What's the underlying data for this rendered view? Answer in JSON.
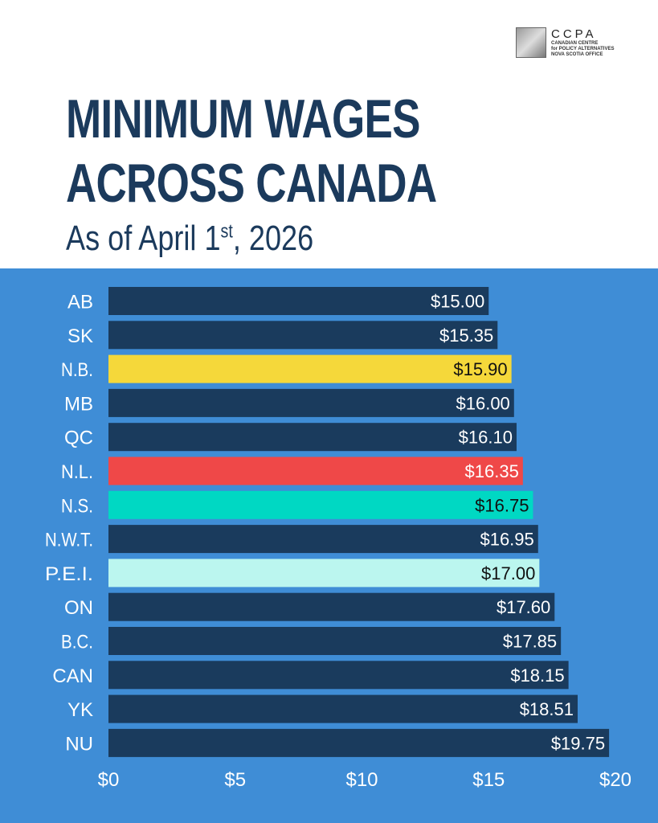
{
  "logo": {
    "name": "CCPA",
    "lines": [
      "CANADIAN CENTRE",
      "for POLICY ALTERNATIVES",
      "NOVA SCOTIA OFFICE"
    ]
  },
  "chart_data": {
    "type": "bar",
    "orientation": "horizontal",
    "title": "MINIMUM WAGES ACROSS CANADA",
    "title_lines": [
      "MINIMUM WAGES",
      "ACROSS CANADA"
    ],
    "subtitle": {
      "prefix": "As of April 1",
      "sup": "st",
      "suffix": ", 2026"
    },
    "categories": [
      "AB",
      "SK",
      "N.B.",
      "MB",
      "QC",
      "N.L.",
      "N.S.",
      "N.W.T.",
      "P.E.I.",
      "ON",
      "B.C.",
      "CAN",
      "YK",
      "NU"
    ],
    "values": [
      15.0,
      15.35,
      15.9,
      16.0,
      16.1,
      16.35,
      16.75,
      16.95,
      17.0,
      17.6,
      17.85,
      18.15,
      18.51,
      19.75
    ],
    "labels": [
      "$15.00",
      "$15.35",
      "$15.90",
      "$16.00",
      "$16.10",
      "$16.35",
      "$16.75",
      "$16.95",
      "$17.00",
      "$17.60",
      "$17.85",
      "$18.15",
      "$18.51",
      "$19.75"
    ],
    "colors": [
      "#1a3b5d",
      "#1a3b5d",
      "#f5d83a",
      "#1a3b5d",
      "#1a3b5d",
      "#ef4848",
      "#00d8c3",
      "#1a3b5d",
      "#bbf6ef",
      "#1a3b5d",
      "#1a3b5d",
      "#1a3b5d",
      "#1a3b5d",
      "#1a3b5d"
    ],
    "label_colors": [
      "#fff",
      "#fff",
      "#111",
      "#fff",
      "#fff",
      "#fff",
      "#111",
      "#fff",
      "#111",
      "#fff",
      "#fff",
      "#fff",
      "#fff",
      "#fff"
    ],
    "xlim": [
      0,
      20
    ],
    "xticks": [
      0,
      5,
      10,
      15,
      20
    ],
    "xtick_labels": [
      "$0",
      "$5",
      "$10",
      "$15",
      "$20"
    ],
    "xlabel": "",
    "ylabel": "",
    "grid": false
  }
}
